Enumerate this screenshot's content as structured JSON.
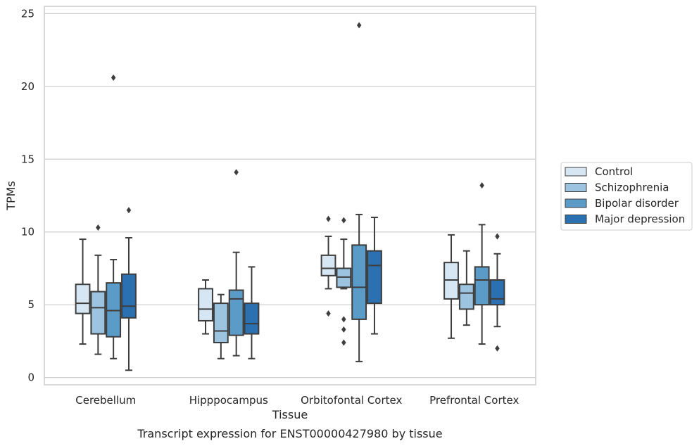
{
  "chart_data": {
    "type": "boxplot",
    "caption": "Transcript expression for ENST00000427980 by tissue",
    "xlabel": "Tissue",
    "ylabel": "TPMs",
    "ylim": [
      -0.5,
      25.5
    ],
    "yticks": [
      0,
      5,
      10,
      15,
      20,
      25
    ],
    "grid": "horizontal",
    "legend_position": "right",
    "categories": [
      "Cerebellum",
      "Hipppocampus",
      "Orbitofontal Cortex",
      "Prefrontal Cortex"
    ],
    "series": [
      {
        "name": "Control",
        "color": "#d6e6f3",
        "boxes": [
          {
            "whisker_low": 2.3,
            "q1": 4.4,
            "median": 5.1,
            "q3": 6.4,
            "whisker_high": 9.5,
            "outliers": []
          },
          {
            "whisker_low": 3.0,
            "q1": 3.9,
            "median": 4.7,
            "q3": 6.1,
            "whisker_high": 6.7,
            "outliers": []
          },
          {
            "whisker_low": 6.1,
            "q1": 7.0,
            "median": 7.5,
            "q3": 8.4,
            "whisker_high": 9.7,
            "outliers": [
              10.9,
              4.4
            ]
          },
          {
            "whisker_low": 2.7,
            "q1": 5.4,
            "median": 6.7,
            "q3": 7.9,
            "whisker_high": 9.8,
            "outliers": []
          }
        ]
      },
      {
        "name": "Schizophrenia",
        "color": "#9cc3df",
        "boxes": [
          {
            "whisker_low": 1.6,
            "q1": 3.0,
            "median": 4.8,
            "q3": 5.9,
            "whisker_high": 8.4,
            "outliers": [
              10.3
            ]
          },
          {
            "whisker_low": 1.3,
            "q1": 2.4,
            "median": 3.2,
            "q3": 5.1,
            "whisker_high": 5.7,
            "outliers": []
          },
          {
            "whisker_low": 6.1,
            "q1": 6.2,
            "median": 6.9,
            "q3": 7.5,
            "whisker_high": 9.5,
            "outliers": [
              10.8,
              4.0,
              3.3,
              2.4
            ]
          },
          {
            "whisker_low": 3.6,
            "q1": 4.7,
            "median": 5.8,
            "q3": 6.4,
            "whisker_high": 8.7,
            "outliers": []
          }
        ]
      },
      {
        "name": "Bipolar disorder",
        "color": "#5b9bc8",
        "boxes": [
          {
            "whisker_low": 1.3,
            "q1": 2.8,
            "median": 4.6,
            "q3": 6.5,
            "whisker_high": 8.1,
            "outliers": [
              20.6
            ]
          },
          {
            "whisker_low": 1.5,
            "q1": 2.9,
            "median": 5.4,
            "q3": 6.0,
            "whisker_high": 8.6,
            "outliers": [
              14.1
            ]
          },
          {
            "whisker_low": 1.1,
            "q1": 4.0,
            "median": 6.2,
            "q3": 9.1,
            "whisker_high": 11.2,
            "outliers": [
              24.2
            ]
          },
          {
            "whisker_low": 2.3,
            "q1": 5.0,
            "median": 6.7,
            "q3": 7.6,
            "whisker_high": 10.5,
            "outliers": [
              13.2
            ]
          }
        ]
      },
      {
        "name": "Major depression",
        "color": "#2b70b0",
        "boxes": [
          {
            "whisker_low": 0.5,
            "q1": 4.1,
            "median": 4.9,
            "q3": 7.1,
            "whisker_high": 9.6,
            "outliers": [
              11.5
            ]
          },
          {
            "whisker_low": 1.3,
            "q1": 3.0,
            "median": 3.7,
            "q3": 5.1,
            "whisker_high": 7.6,
            "outliers": []
          },
          {
            "whisker_low": 3.0,
            "q1": 5.1,
            "median": 7.7,
            "q3": 8.7,
            "whisker_high": 11.0,
            "outliers": []
          },
          {
            "whisker_low": 3.5,
            "q1": 5.0,
            "median": 5.4,
            "q3": 6.7,
            "whisker_high": 8.5,
            "outliers": [
              9.7,
              2.0
            ]
          }
        ]
      }
    ]
  }
}
